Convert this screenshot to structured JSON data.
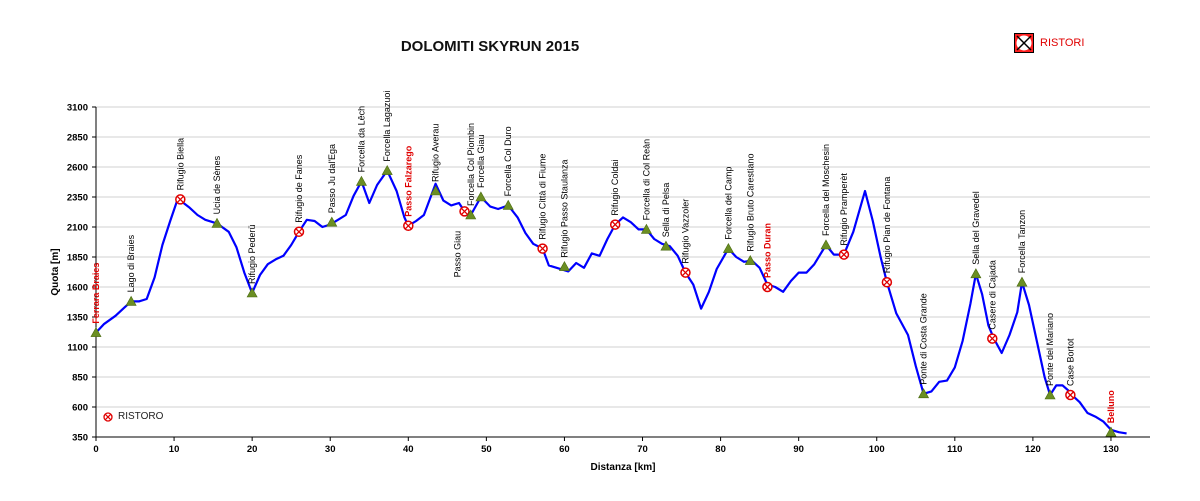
{
  "chart_data": {
    "type": "line",
    "title": "DOLOMITI SKYRUN 2015",
    "xlabel": "Distanza [km]",
    "ylabel": "Quota [m]",
    "xlim": [
      0,
      135
    ],
    "ylim": [
      350,
      3100
    ],
    "xticks": [
      0,
      10,
      20,
      30,
      40,
      50,
      60,
      70,
      80,
      90,
      100,
      110,
      120,
      130
    ],
    "yticks": [
      350,
      600,
      850,
      1100,
      1350,
      1600,
      1850,
      2100,
      2350,
      2600,
      2850,
      3100
    ],
    "grid": true,
    "line_color": "#0000ff",
    "legend_top": {
      "label": "RISTORI"
    },
    "legend_inner": {
      "label": "RISTORO"
    },
    "profile": {
      "x": [
        0,
        1,
        2.5,
        3.5,
        4.5,
        5.5,
        6.5,
        7.5,
        8.5,
        9.5,
        10.5,
        11,
        12,
        13,
        14,
        15.5,
        17,
        18,
        19,
        20,
        21,
        22,
        23,
        24,
        25,
        26,
        27,
        28,
        29,
        30,
        31,
        32,
        33,
        34,
        35,
        36,
        37.3,
        38.5,
        39.5,
        40,
        41,
        42,
        43.5,
        44.5,
        45.5,
        46.5,
        47.2,
        48,
        49.3,
        50.5,
        51.5,
        52.8,
        54,
        55,
        56,
        57.2,
        58,
        59,
        60.5,
        61.5,
        62.5,
        63.5,
        64.5,
        65.5,
        66.5,
        67.5,
        68.5,
        69.5,
        70.5,
        71.5,
        72.5,
        73.5,
        74.5,
        75.5,
        76.5,
        77.5,
        78.5,
        79.5,
        81,
        82,
        83,
        84,
        85,
        86,
        87,
        88,
        89,
        90,
        91,
        92,
        93.5,
        94.5,
        95.8,
        97,
        98.5,
        99.5,
        100.5,
        101.3,
        102.5,
        104,
        105,
        106,
        107,
        108,
        109,
        110,
        111,
        112,
        112.7,
        113.5,
        114.3,
        115,
        116,
        117,
        118,
        118.6,
        119.5,
        120.5,
        121.5,
        122.2,
        123,
        123.8,
        124.5,
        125,
        126,
        127,
        128,
        129,
        130,
        131,
        132
      ],
      "y": [
        1220,
        1290,
        1360,
        1420,
        1480,
        1480,
        1500,
        1680,
        1950,
        2150,
        2340,
        2310,
        2260,
        2200,
        2160,
        2130,
        2060,
        1930,
        1720,
        1550,
        1700,
        1790,
        1830,
        1860,
        1950,
        2060,
        2160,
        2150,
        2100,
        2120,
        2160,
        2200,
        2360,
        2480,
        2300,
        2450,
        2570,
        2400,
        2180,
        2110,
        2150,
        2200,
        2460,
        2320,
        2280,
        2300,
        2230,
        2200,
        2350,
        2270,
        2250,
        2280,
        2180,
        2050,
        1960,
        1920,
        1780,
        1760,
        1730,
        1800,
        1760,
        1880,
        1860,
        2000,
        2120,
        2180,
        2140,
        2080,
        2080,
        2000,
        1960,
        1940,
        1860,
        1720,
        1620,
        1420,
        1560,
        1750,
        1920,
        1850,
        1810,
        1820,
        1760,
        1620,
        1600,
        1560,
        1650,
        1720,
        1720,
        1790,
        1950,
        1870,
        1870,
        2060,
        2400,
        2150,
        1850,
        1640,
        1380,
        1200,
        940,
        710,
        730,
        810,
        820,
        930,
        1150,
        1460,
        1710,
        1540,
        1280,
        1170,
        1050,
        1200,
        1390,
        1640,
        1450,
        1150,
        850,
        700,
        780,
        780,
        740,
        700,
        640,
        550,
        520,
        480,
        410,
        390,
        380
      ]
    },
    "markers": [
      {
        "type": "peak",
        "x": 4.5,
        "y": 1480,
        "label": "Lago di Braies",
        "label_color": "#000000"
      },
      {
        "type": "ristoro",
        "x": 10.8,
        "y": 2330,
        "label": "Rifugio Biella",
        "label_color": "#000000"
      },
      {
        "type": "peak",
        "x": 15.5,
        "y": 2130,
        "label": "Ucia de Sènes",
        "label_color": "#000000"
      },
      {
        "type": "peak",
        "x": 20,
        "y": 1550,
        "label": "Rifugio Pederü",
        "label_color": "#000000"
      },
      {
        "type": "ristoro",
        "x": 26,
        "y": 2060,
        "label": "Rifugio de Fanes",
        "label_color": "#000000"
      },
      {
        "type": "peak",
        "x": 30.2,
        "y": 2140,
        "label": "Passo Ju dal'Ega",
        "label_color": "#000000"
      },
      {
        "type": "peak",
        "x": 34,
        "y": 2480,
        "label": "Forcella da Lêch",
        "label_color": "#000000"
      },
      {
        "type": "peak",
        "x": 37.3,
        "y": 2570,
        "label": "Forcella Lagazuoi",
        "label_color": "#000000"
      },
      {
        "type": "ristoro",
        "x": 40,
        "y": 2110,
        "label": "Passo Falzarego",
        "label_color": "#e00000",
        "bold": true
      },
      {
        "type": "peak",
        "x": 43.5,
        "y": 2400,
        "label": "Rifugio Averau",
        "label_color": "#000000"
      },
      {
        "type": "ristoro",
        "x": 47.2,
        "y": 2230,
        "label": "Passo Giau",
        "label_color": "#000000",
        "below": true
      },
      {
        "type": "peak",
        "x": 48,
        "y": 2200,
        "label": "Forcella Col Piombin",
        "label_color": "#000000"
      },
      {
        "type": "peak",
        "x": 49.3,
        "y": 2350,
        "label": "Forcella Giau",
        "label_color": "#000000"
      },
      {
        "type": "peak",
        "x": 52.8,
        "y": 2280,
        "label": "Forcella Col Duro",
        "label_color": "#000000"
      },
      {
        "type": "ristoro",
        "x": 57.2,
        "y": 1920,
        "label": "Rifugio Città di Fiume",
        "label_color": "#000000"
      },
      {
        "type": "peak",
        "x": 60,
        "y": 1770,
        "label": "Rifugio Passo Staulanza",
        "label_color": "#000000"
      },
      {
        "type": "ristoro",
        "x": 66.5,
        "y": 2120,
        "label": "Rifugio Coldai",
        "label_color": "#000000"
      },
      {
        "type": "peak",
        "x": 70.5,
        "y": 2080,
        "label": "Forcella di Col Reàn",
        "label_color": "#000000"
      },
      {
        "type": "peak",
        "x": 73,
        "y": 1940,
        "label": "Sella di Pelsa",
        "label_color": "#000000"
      },
      {
        "type": "ristoro",
        "x": 75.5,
        "y": 1720,
        "label": "Rifugio Vazzoler",
        "label_color": "#000000"
      },
      {
        "type": "peak",
        "x": 81,
        "y": 1920,
        "label": "Forcella del Camp",
        "label_color": "#000000"
      },
      {
        "type": "peak",
        "x": 83.8,
        "y": 1820,
        "label": "Rifugio Bruto Carestiano",
        "label_color": "#000000"
      },
      {
        "type": "ristoro",
        "x": 86,
        "y": 1600,
        "label": "Passo Duran",
        "label_color": "#e00000",
        "bold": true
      },
      {
        "type": "peak",
        "x": 93.5,
        "y": 1950,
        "label": "Forcella del Moschesin",
        "label_color": "#000000"
      },
      {
        "type": "ristoro",
        "x": 95.8,
        "y": 1870,
        "label": "Rifugio Pramperèt",
        "label_color": "#000000"
      },
      {
        "type": "ristoro",
        "x": 101.3,
        "y": 1640,
        "label": "Rifugio Pian de Fontana",
        "label_color": "#000000"
      },
      {
        "type": "peak",
        "x": 106,
        "y": 710,
        "label": "Ponte di Costa Grande",
        "label_color": "#000000"
      },
      {
        "type": "peak",
        "x": 112.7,
        "y": 1710,
        "label": "Sella del Gravedel",
        "label_color": "#000000"
      },
      {
        "type": "ristoro",
        "x": 114.8,
        "y": 1170,
        "label": "Casere di Cajada",
        "label_color": "#000000"
      },
      {
        "type": "peak",
        "x": 118.6,
        "y": 1640,
        "label": "Forcella Tanzon",
        "label_color": "#000000"
      },
      {
        "type": "peak",
        "x": 122.2,
        "y": 700,
        "label": "Ponte del Mariano",
        "label_color": "#000000"
      },
      {
        "type": "ristoro",
        "x": 124.8,
        "y": 700,
        "label": "Case Bortot",
        "label_color": "#000000"
      },
      {
        "type": "peak",
        "x": 130,
        "y": 390,
        "label": "Belluno",
        "label_color": "#e00000",
        "bold": true
      },
      {
        "type": "peak",
        "x": 0,
        "y": 1220,
        "label": "Ferrara Braies",
        "label_color": "#e00000",
        "bold": true
      }
    ]
  }
}
